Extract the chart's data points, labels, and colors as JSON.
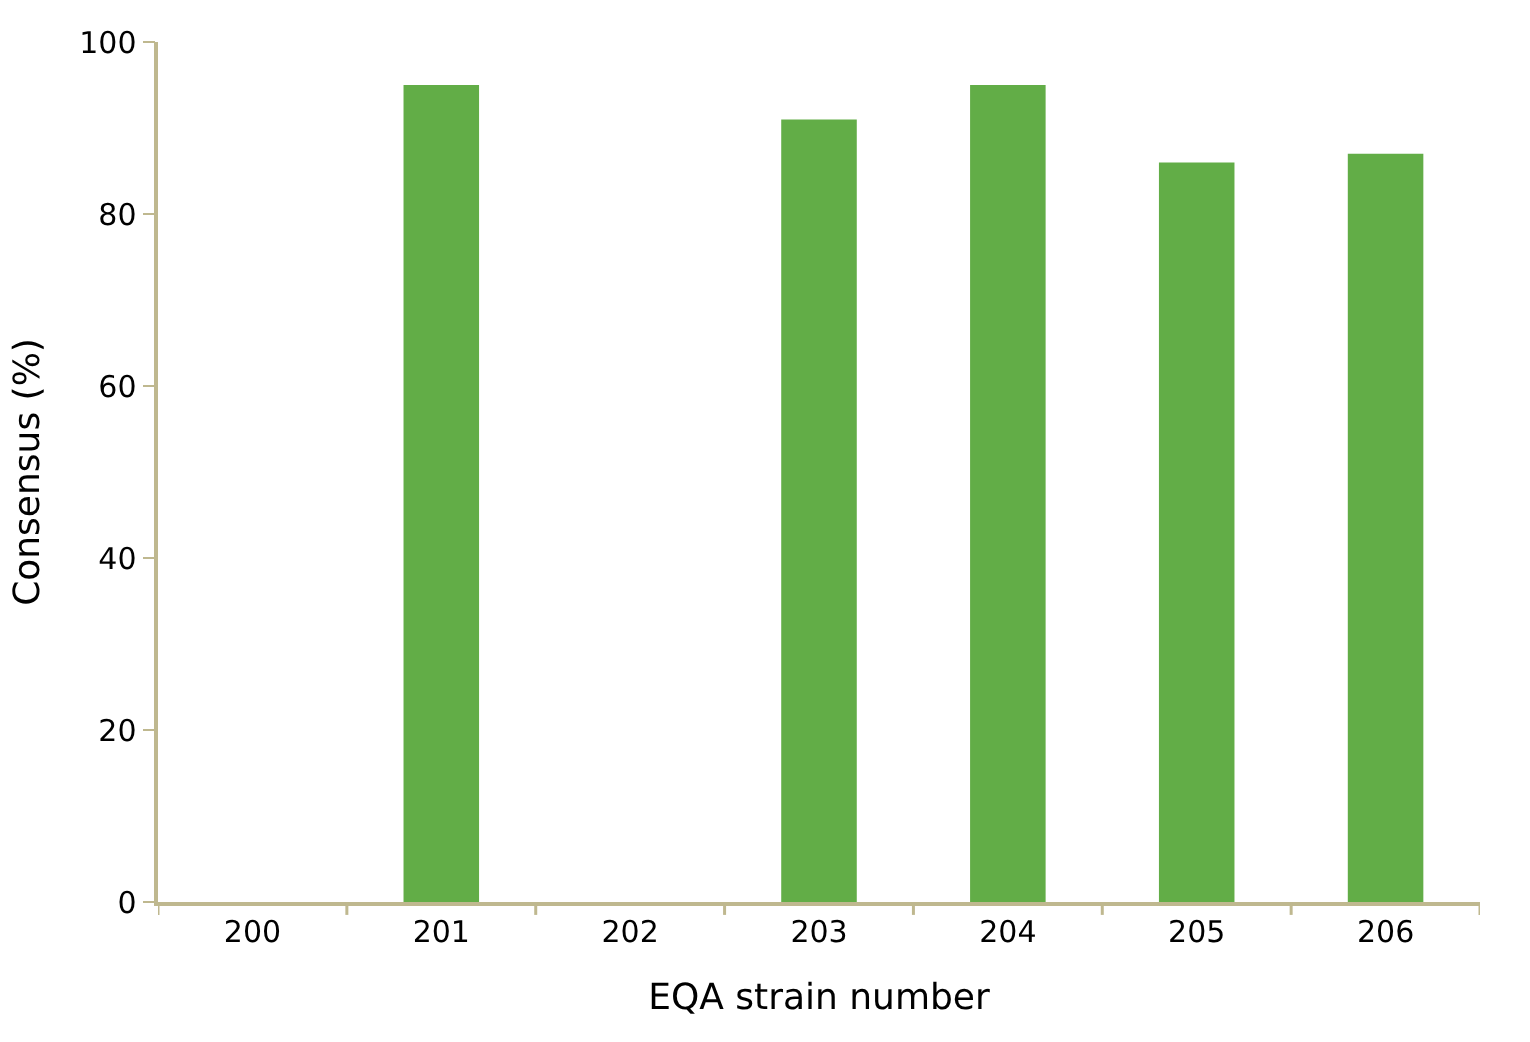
{
  "chart_data": {
    "type": "bar",
    "xlabel": "EQA strain number",
    "ylabel": "Consensus (%)",
    "categories": [
      "200",
      "201",
      "202",
      "203",
      "204",
      "205",
      "206"
    ],
    "values": [
      0,
      95,
      0,
      91,
      95,
      86,
      87
    ],
    "color": "#62ad47",
    "ylim": [
      0,
      100
    ],
    "yticks": [
      0,
      20,
      40,
      60,
      80,
      100
    ]
  }
}
